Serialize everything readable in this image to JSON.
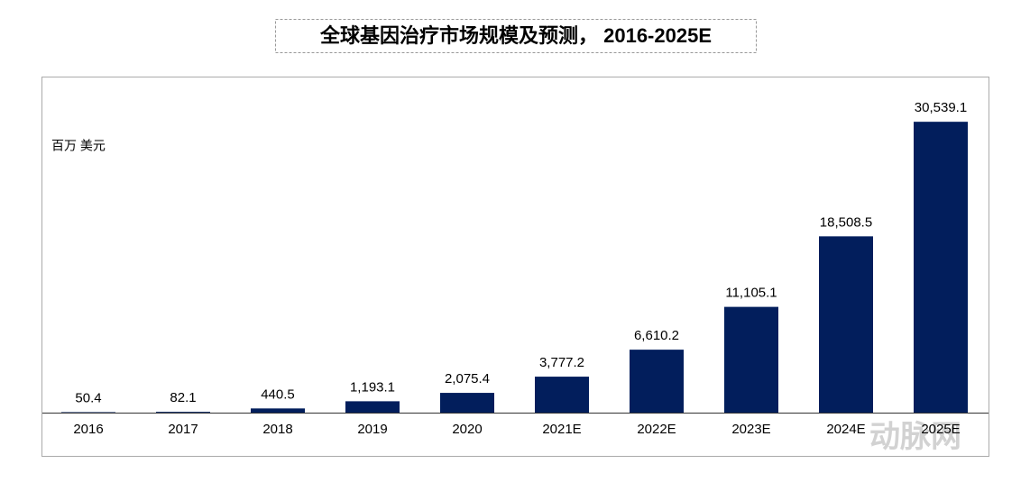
{
  "chart_data": {
    "type": "bar",
    "title": "全球基因治疗市场规模及预测， 2016-2025E",
    "y_label": "百万 美元",
    "categories": [
      "2016",
      "2017",
      "2018",
      "2019",
      "2020",
      "2021E",
      "2022E",
      "2023E",
      "2024E",
      "2025E"
    ],
    "values": [
      50.4,
      82.1,
      440.5,
      1193.1,
      2075.4,
      3777.2,
      6610.2,
      11105.1,
      18508.5,
      30539.1
    ],
    "value_labels": [
      "50.4",
      "82.1",
      "440.5",
      "1,193.1",
      "2,075.4",
      "3,777.2",
      "6,610.2",
      "11,105.1",
      "18,508.5",
      "30,539.1"
    ],
    "color": "#021e5c",
    "ylim": [
      0,
      35000
    ],
    "watermark": "动脉网"
  }
}
